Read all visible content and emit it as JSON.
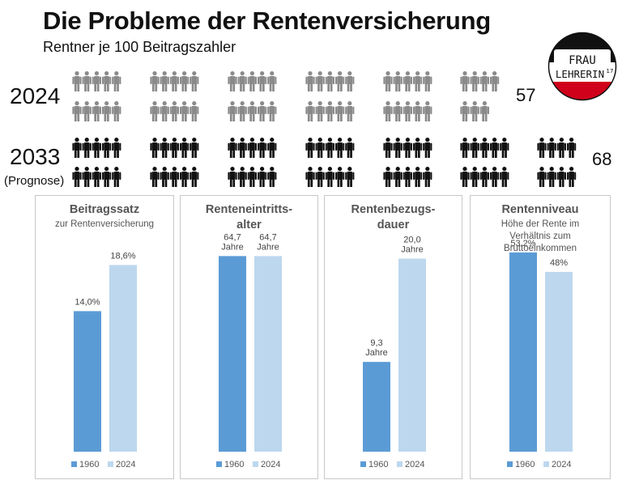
{
  "header": {
    "title": "Die Probleme der Rentenversicherung",
    "subtitle": "Rentner je 100 Beitragszahler"
  },
  "logo": {
    "line1": "FRAU",
    "line2": "LEHRERIN",
    "mark": "17"
  },
  "pictogram": {
    "rows": [
      {
        "year": "2024",
        "note": "",
        "count": "57",
        "color": "#8a8a8a"
      },
      {
        "year": "2033",
        "note": "(Prognose)",
        "count": "68",
        "color": "#111111"
      }
    ]
  },
  "chart_data": [
    {
      "type": "bar",
      "title": "Beitragssatz",
      "subtitle": "zur Rentenversicherung",
      "series": [
        {
          "name": "1960",
          "value": 14.0,
          "label": "14,0%"
        },
        {
          "name": "2024",
          "value": 18.6,
          "label": "18,6%"
        }
      ],
      "colors": [
        "#5b9bd5",
        "#bdd7ee"
      ],
      "ylim": [
        0,
        25
      ]
    },
    {
      "type": "bar",
      "title": "Renteneintritts-alter",
      "title_lines": [
        "Renteneintritts-",
        "alter"
      ],
      "subtitle": "",
      "series": [
        {
          "name": "1960",
          "value": 64.7,
          "label": "64,7 Jahre",
          "label_lines": [
            "64,7",
            "Jahre"
          ]
        },
        {
          "name": "2024",
          "value": 64.7,
          "label": "64,7 Jahre",
          "label_lines": [
            "64,7",
            "Jahre"
          ]
        }
      ],
      "colors": [
        "#5b9bd5",
        "#bdd7ee"
      ],
      "ylim": [
        0,
        83
      ]
    },
    {
      "type": "bar",
      "title": "Rentenbezugs-dauer",
      "title_lines": [
        "Rentenbezugs-",
        "dauer"
      ],
      "subtitle": "",
      "series": [
        {
          "name": "1960",
          "value": 9.3,
          "label": "9,3 Jahre",
          "label_lines": [
            "9,3",
            "Jahre"
          ]
        },
        {
          "name": "2024",
          "value": 20.0,
          "label": "20,0 Jahre",
          "label_lines": [
            "20,0",
            "Jahre"
          ]
        }
      ],
      "colors": [
        "#5b9bd5",
        "#bdd7ee"
      ],
      "ylim": [
        0,
        26
      ]
    },
    {
      "type": "bar",
      "title": "Rentenniveau",
      "subtitle": "Höhe der Rente im Verhältnis zum Bruttoeinkommen",
      "subtitle_lines": [
        "Höhe der Rente im",
        "Verhältnis zum",
        "Bruttoeinkommen"
      ],
      "series": [
        {
          "name": "1960",
          "value": 53.2,
          "label": "53,2%"
        },
        {
          "name": "2024",
          "value": 48,
          "label": "48%"
        }
      ],
      "colors": [
        "#5b9bd5",
        "#bdd7ee"
      ],
      "ylim": [
        0,
        67
      ]
    }
  ]
}
